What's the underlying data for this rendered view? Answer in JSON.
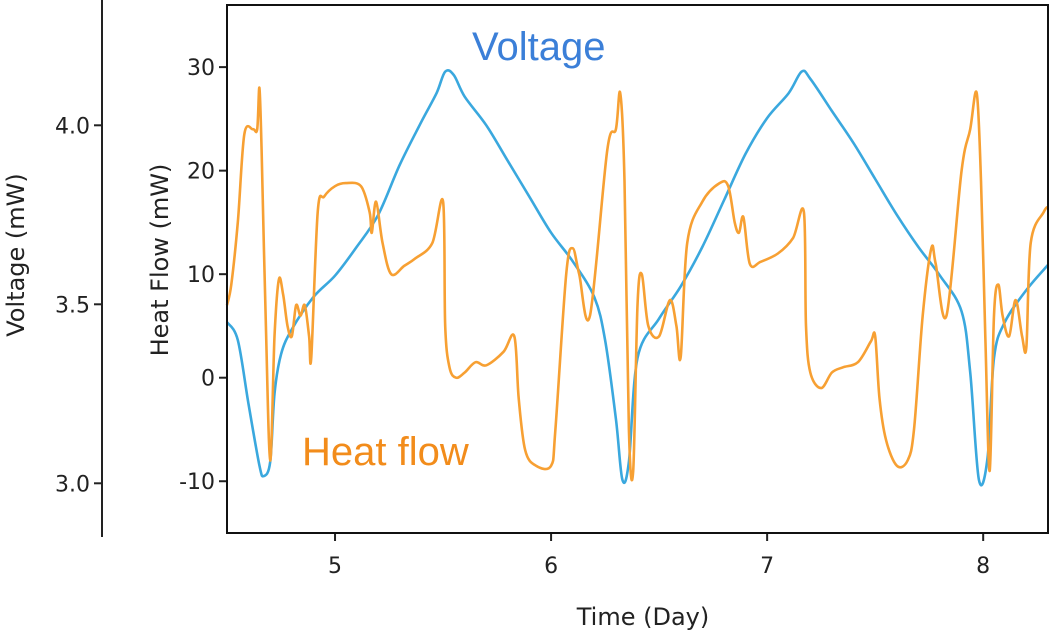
{
  "chart_data": {
    "type": "line",
    "xlabel": "Time (Day)",
    "xlim": [
      4.5,
      8.3
    ],
    "xticks": [
      5,
      6,
      7,
      8
    ],
    "grid": false,
    "left_axis": {
      "label": "Voltage (mW)",
      "lim": [
        2.85,
        4.35
      ],
      "ticks": [
        "4.0",
        "3.5",
        "3.0"
      ],
      "tick_values": [
        4.0,
        3.5,
        3.0
      ]
    },
    "right_axis": {
      "label": "Heat Flow (mW)",
      "lim": [
        -15,
        36
      ],
      "ticks": [
        "30",
        "20",
        "10",
        "0",
        "-10"
      ],
      "tick_values": [
        30,
        20,
        10,
        0,
        -10
      ]
    },
    "series": [
      {
        "name": "Voltage",
        "axis": "left",
        "color": "#3aa8de",
        "label_color": "#3b7fd8",
        "points": [
          [
            4.5,
            3.45
          ],
          [
            4.55,
            3.4
          ],
          [
            4.6,
            3.22
          ],
          [
            4.65,
            3.05
          ],
          [
            4.67,
            3.02
          ],
          [
            4.7,
            3.06
          ],
          [
            4.72,
            3.25
          ],
          [
            4.75,
            3.36
          ],
          [
            4.8,
            3.43
          ],
          [
            4.9,
            3.52
          ],
          [
            5.0,
            3.58
          ],
          [
            5.1,
            3.66
          ],
          [
            5.2,
            3.75
          ],
          [
            5.3,
            3.89
          ],
          [
            5.4,
            4.01
          ],
          [
            5.47,
            4.09
          ],
          [
            5.51,
            4.15
          ],
          [
            5.55,
            4.14
          ],
          [
            5.6,
            4.08
          ],
          [
            5.7,
            4.0
          ],
          [
            5.8,
            3.9
          ],
          [
            5.9,
            3.8
          ],
          [
            6.0,
            3.7
          ],
          [
            6.1,
            3.62
          ],
          [
            6.2,
            3.52
          ],
          [
            6.25,
            3.4
          ],
          [
            6.3,
            3.18
          ],
          [
            6.33,
            3.01
          ],
          [
            6.36,
            3.06
          ],
          [
            6.4,
            3.35
          ],
          [
            6.5,
            3.46
          ],
          [
            6.6,
            3.55
          ],
          [
            6.7,
            3.66
          ],
          [
            6.8,
            3.79
          ],
          [
            6.9,
            3.92
          ],
          [
            7.0,
            4.02
          ],
          [
            7.1,
            4.09
          ],
          [
            7.16,
            4.15
          ],
          [
            7.2,
            4.13
          ],
          [
            7.3,
            4.04
          ],
          [
            7.4,
            3.95
          ],
          [
            7.5,
            3.85
          ],
          [
            7.6,
            3.75
          ],
          [
            7.7,
            3.66
          ],
          [
            7.8,
            3.58
          ],
          [
            7.9,
            3.48
          ],
          [
            7.94,
            3.31
          ],
          [
            7.98,
            3.01
          ],
          [
            8.02,
            3.07
          ],
          [
            8.05,
            3.35
          ],
          [
            8.1,
            3.45
          ],
          [
            8.2,
            3.54
          ],
          [
            8.3,
            3.61
          ]
        ]
      },
      {
        "name": "Heat flow",
        "axis": "right",
        "color": "#f7a033",
        "label_color": "#f28c1b",
        "points": [
          [
            4.5,
            7
          ],
          [
            4.52,
            9
          ],
          [
            4.55,
            15
          ],
          [
            4.58,
            23.5
          ],
          [
            4.62,
            24
          ],
          [
            4.64,
            24
          ],
          [
            4.65,
            28
          ],
          [
            4.66,
            22
          ],
          [
            4.68,
            5
          ],
          [
            4.7,
            -8
          ],
          [
            4.72,
            4
          ],
          [
            4.74,
            9.5
          ],
          [
            4.76,
            8
          ],
          [
            4.78,
            5
          ],
          [
            4.8,
            4
          ],
          [
            4.82,
            7
          ],
          [
            4.84,
            6
          ],
          [
            4.86,
            7
          ],
          [
            4.88,
            4
          ],
          [
            4.89,
            2
          ],
          [
            4.92,
            16
          ],
          [
            4.95,
            17.5
          ],
          [
            5.0,
            18.5
          ],
          [
            5.05,
            18.8
          ],
          [
            5.12,
            18.5
          ],
          [
            5.16,
            16
          ],
          [
            5.17,
            14
          ],
          [
            5.19,
            17
          ],
          [
            5.22,
            13
          ],
          [
            5.26,
            10
          ],
          [
            5.32,
            10.8
          ],
          [
            5.37,
            11.5
          ],
          [
            5.45,
            13
          ],
          [
            5.5,
            17
          ],
          [
            5.51,
            5
          ],
          [
            5.53,
            1
          ],
          [
            5.56,
            0
          ],
          [
            5.6,
            0.5
          ],
          [
            5.65,
            1.5
          ],
          [
            5.7,
            1.2
          ],
          [
            5.78,
            2.5
          ],
          [
            5.83,
            4
          ],
          [
            5.85,
            -2
          ],
          [
            5.88,
            -7
          ],
          [
            5.93,
            -8.5
          ],
          [
            6.0,
            -8.5
          ],
          [
            6.02,
            -5
          ],
          [
            6.07,
            10
          ],
          [
            6.1,
            12.5
          ],
          [
            6.13,
            10
          ],
          [
            6.18,
            6
          ],
          [
            6.26,
            22
          ],
          [
            6.3,
            24
          ],
          [
            6.32,
            27.5
          ],
          [
            6.34,
            19
          ],
          [
            6.36,
            -5
          ],
          [
            6.38,
            -9
          ],
          [
            6.4,
            7
          ],
          [
            6.42,
            10
          ],
          [
            6.45,
            5
          ],
          [
            6.5,
            4
          ],
          [
            6.55,
            7.5
          ],
          [
            6.58,
            5
          ],
          [
            6.6,
            2
          ],
          [
            6.63,
            13
          ],
          [
            6.7,
            17
          ],
          [
            6.78,
            18.8
          ],
          [
            6.82,
            18.5
          ],
          [
            6.85,
            15
          ],
          [
            6.87,
            14
          ],
          [
            6.89,
            15.5
          ],
          [
            6.92,
            11
          ],
          [
            6.97,
            11.2
          ],
          [
            7.05,
            12
          ],
          [
            7.12,
            13.5
          ],
          [
            7.17,
            16
          ],
          [
            7.18,
            5
          ],
          [
            7.2,
            0.5
          ],
          [
            7.25,
            -1
          ],
          [
            7.3,
            0.5
          ],
          [
            7.35,
            1
          ],
          [
            7.42,
            1.5
          ],
          [
            7.48,
            3.5
          ],
          [
            7.5,
            4
          ],
          [
            7.52,
            -2
          ],
          [
            7.55,
            -6
          ],
          [
            7.6,
            -8.5
          ],
          [
            7.65,
            -8
          ],
          [
            7.68,
            -5
          ],
          [
            7.72,
            6
          ],
          [
            7.76,
            12.5
          ],
          [
            7.78,
            11
          ],
          [
            7.83,
            6
          ],
          [
            7.9,
            20
          ],
          [
            7.94,
            24
          ],
          [
            7.97,
            27.5
          ],
          [
            7.99,
            19
          ],
          [
            8.01,
            4
          ],
          [
            8.03,
            -9
          ],
          [
            8.05,
            6
          ],
          [
            8.07,
            9
          ],
          [
            8.09,
            6
          ],
          [
            8.12,
            4
          ],
          [
            8.15,
            7.5
          ],
          [
            8.18,
            4
          ],
          [
            8.2,
            3
          ],
          [
            8.22,
            13
          ],
          [
            8.28,
            16
          ],
          [
            8.3,
            16.5
          ]
        ]
      }
    ]
  }
}
